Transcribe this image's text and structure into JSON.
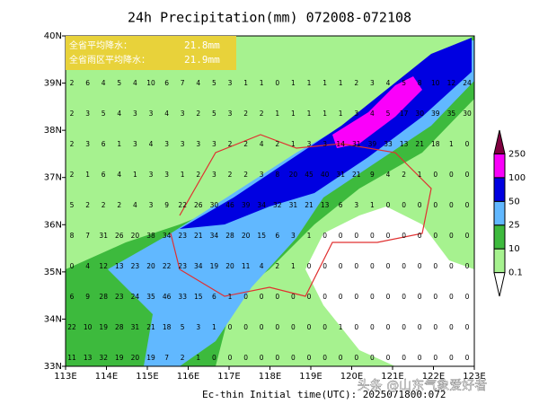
{
  "map": {
    "title": "24h Precipitation(mm) 072008-072108",
    "info": {
      "label1": "全省平均降水：",
      "value1": "21.8mm",
      "label2": "全省雨区平均降水：",
      "value2": "21.9mm"
    },
    "footer": "Ec-thin   Initial time(UTC): 2025071800:072",
    "watermark": "头条 @山东气象爱好者",
    "xlim": [
      113,
      123
    ],
    "ylim": [
      33,
      40
    ],
    "xticks": [
      {
        "value": 113,
        "label": "113E"
      },
      {
        "value": 114,
        "label": "114E"
      },
      {
        "value": 115,
        "label": "115E"
      },
      {
        "value": 116,
        "label": "116E"
      },
      {
        "value": 117,
        "label": "117E"
      },
      {
        "value": 118,
        "label": "118E"
      },
      {
        "value": 119,
        "label": "119E"
      },
      {
        "value": 120,
        "label": "120E"
      },
      {
        "value": 121,
        "label": "121E"
      },
      {
        "value": 122,
        "label": "122E"
      },
      {
        "value": 123,
        "label": "123E"
      }
    ],
    "yticks": [
      {
        "value": 33,
        "label": "33N"
      },
      {
        "value": 34,
        "label": "34N"
      },
      {
        "value": 35,
        "label": "35N"
      },
      {
        "value": 36,
        "label": "36N"
      },
      {
        "value": 37,
        "label": "37N"
      },
      {
        "value": 38,
        "label": "38N"
      },
      {
        "value": 39,
        "label": "39N"
      },
      {
        "value": 40,
        "label": "40N"
      }
    ],
    "colorbar": {
      "levels": [
        0.1,
        10,
        25,
        50,
        100,
        250
      ],
      "colors": [
        "#ffffff",
        "#a6f28f",
        "#3dba3d",
        "#61b8ff",
        "#0000e1",
        "#fa00fa",
        "#800040"
      ]
    },
    "grid_rows": [
      [
        2,
        6,
        4,
        5,
        4,
        10,
        6,
        7,
        4,
        5,
        3,
        1,
        1,
        0,
        1,
        1,
        1,
        1,
        2,
        3,
        4,
        5,
        8,
        10,
        12,
        24
      ],
      [
        2,
        3,
        5,
        4,
        3,
        3,
        4,
        3,
        2,
        5,
        3,
        2,
        2,
        1,
        1,
        1,
        1,
        1,
        3,
        4,
        5,
        17,
        30,
        39,
        35,
        30
      ],
      [
        2,
        3,
        6,
        1,
        3,
        4,
        3,
        3,
        3,
        3,
        2,
        2,
        4,
        2,
        1,
        3,
        3,
        14,
        31,
        39,
        33,
        13,
        21,
        18,
        1,
        0
      ],
      [
        2,
        1,
        6,
        4,
        1,
        3,
        3,
        1,
        2,
        3,
        2,
        2,
        3,
        8,
        20,
        45,
        40,
        31,
        21,
        9,
        4,
        2,
        1,
        0,
        0,
        0
      ],
      [
        5,
        2,
        2,
        2,
        4,
        3,
        9,
        22,
        26,
        30,
        46,
        39,
        34,
        32,
        31,
        21,
        13,
        6,
        3,
        1,
        0,
        0,
        0,
        0,
        0,
        0
      ],
      [
        8,
        7,
        31,
        26,
        20,
        38,
        34,
        23,
        21,
        34,
        28,
        20,
        15,
        6,
        3,
        1,
        0,
        0,
        0,
        0,
        0,
        0,
        0,
        0,
        0,
        0
      ],
      [
        0,
        4,
        12,
        13,
        23,
        20,
        22,
        23,
        34,
        19,
        20,
        11,
        4,
        2,
        1,
        0,
        0,
        0,
        0,
        0,
        0,
        0,
        0,
        0,
        0,
        0
      ],
      [
        6,
        9,
        28,
        23,
        24,
        35,
        46,
        33,
        15,
        6,
        1,
        0,
        0,
        0,
        0,
        0,
        0,
        0,
        0,
        0,
        0,
        0,
        0,
        0,
        0,
        0
      ],
      [
        22,
        10,
        19,
        28,
        31,
        21,
        18,
        5,
        3,
        1,
        0,
        0,
        0,
        0,
        0,
        0,
        0,
        1,
        0,
        0,
        0,
        0,
        0,
        0,
        0,
        0
      ],
      [
        11,
        13,
        32,
        19,
        20,
        19,
        7,
        2,
        1,
        0,
        0,
        0,
        0,
        0,
        0,
        0,
        0,
        0,
        0,
        0,
        0,
        0,
        0,
        0,
        0,
        0
      ]
    ]
  }
}
